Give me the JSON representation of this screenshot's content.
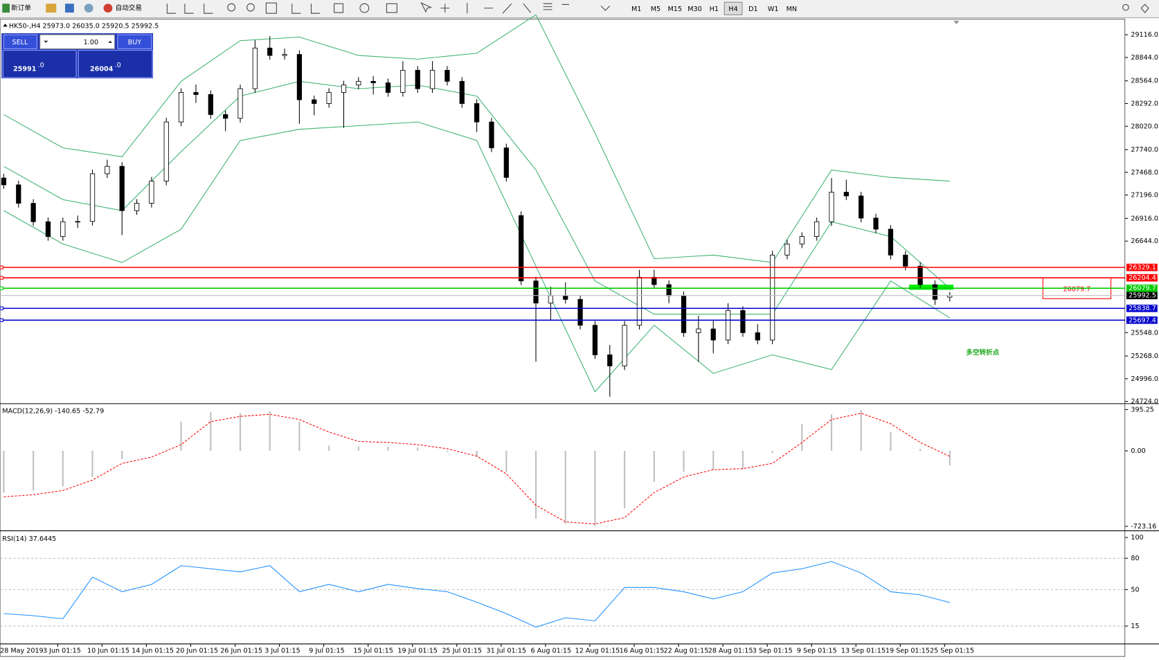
{
  "toolbar": {
    "new_order": "新订单",
    "auto_trading": "自动交易",
    "timeframes": [
      "M1",
      "M5",
      "M15",
      "M30",
      "H1",
      "H4",
      "D1",
      "W1",
      "MN"
    ]
  },
  "one_click": {
    "sell": "SELL",
    "buy": "BUY",
    "lot": "1.00",
    "bid": "25991",
    "bid_frac": ".0",
    "ask": "26004",
    "ask_frac": ".0"
  },
  "chart_data": [
    {
      "type": "candlestick",
      "title": "HK50-,H4 25973.0 26035.0 25920.5 25992.5",
      "candles": [
        [
          27400,
          27450,
          27270,
          27318
        ],
        [
          27318,
          27368,
          27047,
          27097
        ],
        [
          27097,
          27147,
          26826,
          26876
        ],
        [
          26876,
          26926,
          26649,
          26699
        ],
        [
          26699,
          26926,
          26649,
          26876
        ],
        [
          26876,
          26950,
          26800,
          26880
        ],
        [
          26880,
          27501,
          26830,
          27451
        ],
        [
          27451,
          27620,
          27401,
          27540
        ],
        [
          27540,
          27590,
          26716,
          27009
        ],
        [
          27009,
          27147,
          26959,
          27097
        ],
        [
          27097,
          27413,
          27047,
          27363
        ],
        [
          27363,
          28121,
          27313,
          28071
        ],
        [
          28071,
          28475,
          28021,
          28425
        ],
        [
          28425,
          28520,
          28300,
          28400
        ],
        [
          28400,
          28450,
          28110,
          28160
        ],
        [
          28160,
          28210,
          27960,
          28115
        ],
        [
          28115,
          28520,
          28065,
          28470
        ],
        [
          28470,
          29050,
          28420,
          28957
        ],
        [
          28957,
          29100,
          28818,
          28868
        ],
        [
          28868,
          28950,
          28818,
          28880
        ],
        [
          28880,
          28930,
          28050,
          28337
        ],
        [
          28337,
          28387,
          28150,
          28292
        ],
        [
          28292,
          28475,
          28242,
          28425
        ],
        [
          28425,
          28564,
          28000,
          28514
        ],
        [
          28514,
          28608,
          28464,
          28558
        ],
        [
          28558,
          28620,
          28400,
          28540
        ],
        [
          28540,
          28590,
          28375,
          28425
        ],
        [
          28425,
          28800,
          28375,
          28691
        ],
        [
          28691,
          28741,
          28420,
          28470
        ],
        [
          28470,
          28800,
          28420,
          28691
        ],
        [
          28691,
          28741,
          28508,
          28558
        ],
        [
          28558,
          28608,
          28242,
          28292
        ],
        [
          28292,
          28342,
          27950,
          28071
        ],
        [
          28071,
          28121,
          27711,
          27761
        ],
        [
          27761,
          27811,
          27357,
          27407
        ],
        [
          26950,
          27000,
          26117,
          26167
        ],
        [
          26167,
          26217,
          25200,
          25902
        ],
        [
          25902,
          26100,
          25700,
          25990
        ],
        [
          25990,
          26150,
          25896,
          25946
        ],
        [
          25946,
          25996,
          25586,
          25636
        ],
        [
          25636,
          25686,
          25232,
          25282
        ],
        [
          25282,
          25400,
          24780,
          25149
        ],
        [
          25149,
          25686,
          25099,
          25636
        ],
        [
          25636,
          26300,
          25586,
          26211
        ],
        [
          26211,
          26300,
          26073,
          26123
        ],
        [
          26123,
          26173,
          25900,
          25990
        ],
        [
          25990,
          26040,
          25497,
          25547
        ],
        [
          25547,
          25750,
          25200,
          25592
        ],
        [
          25592,
          25700,
          25300,
          25459
        ],
        [
          25459,
          25900,
          25409,
          25813
        ],
        [
          25813,
          25863,
          25497,
          25547
        ],
        [
          25547,
          25650,
          25409,
          25459
        ],
        [
          25459,
          26527,
          25409,
          26477
        ],
        [
          26477,
          26660,
          26427,
          26610
        ],
        [
          26610,
          26749,
          26560,
          26699
        ],
        [
          26699,
          26926,
          26649,
          26876
        ],
        [
          26876,
          27400,
          26826,
          27230
        ],
        [
          27230,
          27380,
          27135,
          27185
        ],
        [
          27185,
          27235,
          26870,
          26920
        ],
        [
          26920,
          26970,
          26737,
          26787
        ],
        [
          26787,
          26837,
          26427,
          26477
        ],
        [
          26477,
          26527,
          26294,
          26344
        ],
        [
          26344,
          26394,
          26073,
          26123
        ],
        [
          26123,
          26173,
          25880,
          25946
        ],
        [
          25973,
          26035,
          25920.5,
          25992.5
        ]
      ],
      "bollinger": {
        "color": "#3cb371",
        "x": [
          0,
          4,
          8,
          12,
          16,
          20,
          24,
          28,
          32,
          36,
          40,
          44,
          48,
          52,
          56,
          60,
          64
        ],
        "upper": [
          28160,
          27761,
          27655,
          28558,
          29045,
          29089,
          28868,
          28824,
          28895,
          29355,
          27938,
          26433,
          26477,
          26388,
          27496,
          27407,
          27363
        ],
        "middle": [
          27540,
          27141,
          27009,
          27717,
          28381,
          28558,
          28470,
          28514,
          28381,
          27496,
          26167,
          25769,
          25769,
          25769,
          26876,
          26699,
          26079
        ],
        "lower": [
          27009,
          26610,
          26388,
          26787,
          27850,
          27983,
          28027,
          28071,
          27850,
          26344,
          24839,
          25636,
          25060,
          25282,
          25105,
          26167,
          25725
        ]
      },
      "ylim": [
        24706,
        29302
      ],
      "yticks": [
        {
          "value": 29116,
          "label": "29116.0"
        },
        {
          "value": 28844,
          "label": "28844.0"
        },
        {
          "value": 28564,
          "label": "28564.0"
        },
        {
          "value": 28292,
          "label": "28292.0"
        },
        {
          "value": 28020,
          "label": "28020.0"
        },
        {
          "value": 27740,
          "label": "27740.0"
        },
        {
          "value": 27468,
          "label": "27468.0"
        },
        {
          "value": 27196,
          "label": "27196.0"
        },
        {
          "value": 26916,
          "label": "26916.0"
        },
        {
          "value": 26644,
          "label": "26644.0"
        },
        {
          "value": 25548,
          "label": "25548.0"
        },
        {
          "value": 25268,
          "label": "25268.0"
        },
        {
          "value": 24996,
          "label": "24996.0"
        },
        {
          "value": 24724,
          "label": "24724.0"
        }
      ],
      "levels": [
        {
          "value": 26329.1,
          "color": "#ff0000"
        },
        {
          "value": 26204.4,
          "color": "#ff0000"
        },
        {
          "value": 26079.7,
          "color": "#00cc00"
        },
        {
          "value": 25838.7,
          "color": "#0000cc"
        },
        {
          "value": 25697.4,
          "color": "#0000cc"
        }
      ],
      "current_price": {
        "value": 25992.5,
        "color": "#000000"
      },
      "annotation": "多空转折点",
      "x_labels": [
        "28 May 2019",
        "3 Jun 01:15",
        "10 Jun 01:15",
        "14 Jun 01:15",
        "20 Jun 01:15",
        "26 Jun 01:15",
        "3 Jul 01:15",
        "9 Jul 01:15",
        "15 Jul 01:15",
        "19 Jul 01:15",
        "25 Jul 01:15",
        "31 Jul 01:15",
        "6 Aug 01:15",
        "12 Aug 01:15",
        "16 Aug 01:15",
        "22 Aug 01:15",
        "28 Aug 01:15",
        "3 Sep 01:15",
        "9 Sep 01:15",
        "13 Sep 01:15",
        "19 Sep 01:15",
        "25 Sep 01:15"
      ]
    },
    {
      "type": "macd",
      "title": "MACD(12,26,9) -140.65 -52.79",
      "ylim": [
        -751.5,
        437.7
      ],
      "yticks": [
        395.25,
        {
          "value": 0,
          "label": "0.00"
        },
        -723.16
      ],
      "histogram": {
        "color": "#c0c0c0",
        "values": [
          -400,
          -380,
          -340,
          -250,
          -80,
          0,
          280,
          370,
          360,
          380,
          280,
          50,
          40,
          40,
          30,
          -10,
          -60,
          -200,
          -650,
          -700,
          -720,
          -550,
          -300,
          -200,
          -180,
          -170,
          -20,
          260,
          350,
          390,
          180,
          20,
          -140.65
        ]
      },
      "signal": {
        "color": "#ff0000",
        "values": [
          -440,
          -420,
          -380,
          -280,
          -120,
          -60,
          60,
          280,
          330,
          350,
          300,
          180,
          90,
          80,
          60,
          20,
          -50,
          -220,
          -520,
          -680,
          -700,
          -640,
          -400,
          -250,
          -180,
          -170,
          -120,
          80,
          300,
          360,
          260,
          80,
          -52.79
        ]
      }
    },
    {
      "type": "line",
      "title": "RSI(14) 37.6445",
      "ylim": [
        -1.4,
        105
      ],
      "yticks": [
        100,
        80,
        50,
        15
      ],
      "grid": true,
      "color": "#1e90ff",
      "values": [
        27,
        25,
        22,
        62,
        48,
        55,
        73,
        70,
        67,
        73,
        48,
        55,
        48,
        55,
        51,
        48,
        38,
        27,
        14,
        23,
        20,
        52,
        52,
        48,
        41,
        48,
        66,
        70,
        77,
        66,
        48,
        45,
        37.6445
      ]
    }
  ]
}
